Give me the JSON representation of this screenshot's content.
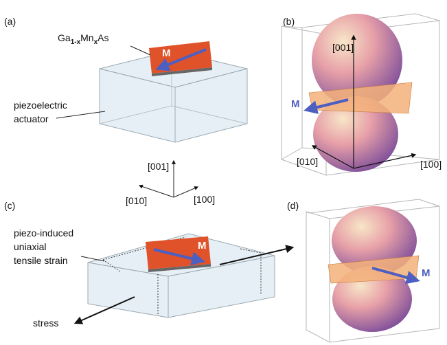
{
  "panels": [
    "(a)",
    "(b)",
    "(c)",
    "(d)"
  ],
  "panel_a": {
    "material": [
      "Ga",
      "1-x",
      "Mn",
      "x",
      "As"
    ],
    "magnetization": "M",
    "actuator": [
      "piezoelectric",
      "actuator"
    ]
  },
  "panel_b": {
    "axes": [
      "[001]",
      "[010]",
      "[100]"
    ],
    "magnetization": "M"
  },
  "axes_key": {
    "vertical": "[001]",
    "left": "[010]",
    "right": "[100]"
  },
  "panel_c": {
    "strain": [
      "piezo-induced",
      "uniaxial",
      "tensile strain"
    ],
    "magnetization": "M",
    "stress": "stress"
  },
  "panel_d": {
    "magnetization": "M"
  }
}
